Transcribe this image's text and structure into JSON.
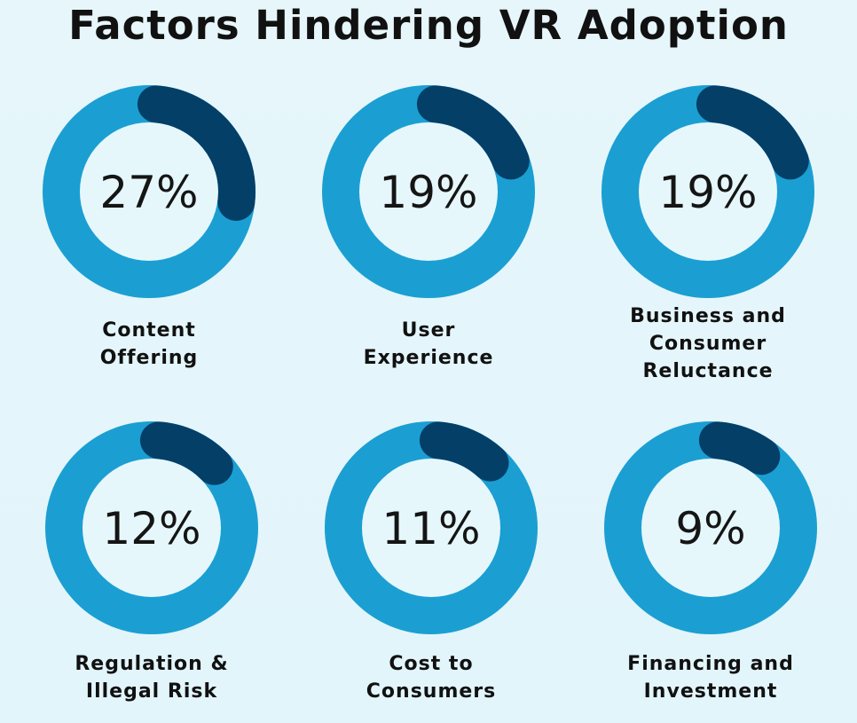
{
  "chart_data": {
    "type": "donut",
    "title": "Factors Hindering VR Adoption",
    "categories": [
      "Content Offering",
      "User Experience",
      "Business and Consumer Reluctance",
      "Regulation & Illegal Risk",
      "Cost to Consumers",
      "Financing and Investment"
    ],
    "label_lines": [
      [
        "Content",
        "Offering"
      ],
      [
        "User",
        "Experience"
      ],
      [
        "Business and",
        "Consumer",
        "Reluctance"
      ],
      [
        "Regulation &",
        "Illegal Risk"
      ],
      [
        "Cost to",
        "Consumers"
      ],
      [
        "Financing and",
        "Investment"
      ]
    ],
    "values": [
      27,
      19,
      19,
      12,
      11,
      9
    ],
    "value_labels": [
      "27%",
      "19%",
      "19%",
      "12%",
      "11%",
      "9%"
    ],
    "unit": "%",
    "colors": {
      "ring": "#1b9fd2",
      "highlight": "#043f68",
      "background": "#e4f6fb",
      "inner": "#e6f7fc"
    }
  }
}
